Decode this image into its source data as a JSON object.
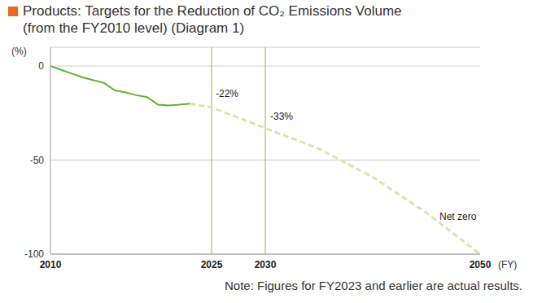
{
  "chart_data": {
    "type": "line",
    "title": [
      "Products: Targets for the Reduction of CO₂ Emissions Volume",
      "(from the FY2010 level) (Diagram 1)"
    ],
    "y_label": "(%)",
    "x_label": "(FY)",
    "note": "Note: Figures for FY2023 and earlier are actual results.",
    "x": [
      2010,
      2011,
      2012,
      2013,
      2014,
      2015,
      2016,
      2017,
      2018,
      2019,
      2020,
      2021,
      2022,
      2023,
      2025,
      2030,
      2035,
      2040,
      2045,
      2050
    ],
    "series": [
      {
        "color": "#66b032",
        "line_style": "solid",
        "values": [
          0,
          -2,
          -4,
          -6,
          -7.5,
          -9,
          -13,
          -14,
          -15.5,
          -16.5,
          -20.5,
          -21,
          -20.5,
          -20,
          null,
          null,
          null,
          null,
          null,
          null
        ]
      },
      {
        "color": "#d6e9a6",
        "line_style": "dashed",
        "values": [
          null,
          null,
          null,
          null,
          null,
          null,
          null,
          null,
          null,
          null,
          null,
          null,
          null,
          -20,
          -22,
          -33,
          -44,
          -59,
          -78,
          -100
        ]
      }
    ],
    "xlim": [
      2010,
      2050
    ],
    "xticks": [
      2010,
      2025,
      2030,
      2050
    ],
    "ylim": [
      -100,
      10
    ],
    "yticks": [
      0,
      -50,
      -100
    ],
    "grid": true,
    "vlines": [
      2025,
      2030
    ],
    "vline_color": "#7cc04b",
    "annotations": [
      {
        "text": "-22%",
        "x": 2025,
        "y": -22
      },
      {
        "text": "-33%",
        "x": 2030,
        "y": -33
      },
      {
        "text": "Net zero",
        "x": 2050,
        "y": -100
      }
    ]
  }
}
